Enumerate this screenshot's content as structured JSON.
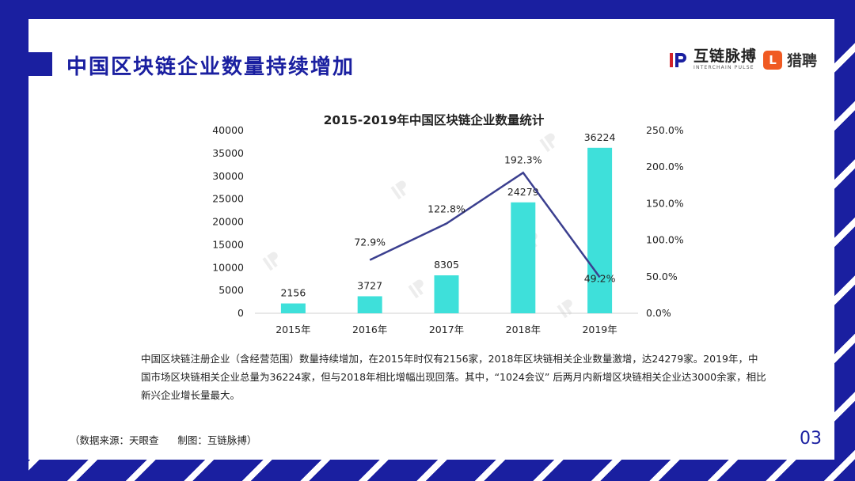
{
  "header": {
    "title": "中国区块链企业数量持续增加",
    "brand_ichain_name": "互链脉搏",
    "brand_ichain_sub": "INTERCHAIN PULSE",
    "brand_liepin_name": "猎聘",
    "brand_liepin_glyph": "L"
  },
  "colors": {
    "primary": "#1a1fa0",
    "bar": "#3ee0da",
    "line": "#3b3f8f"
  },
  "chart_data": {
    "type": "bar",
    "title": "2015-2019年中国区块链企业数量统计",
    "categories": [
      "2015年",
      "2016年",
      "2017年",
      "2018年",
      "2019年"
    ],
    "series": [
      {
        "type": "bar",
        "axis": "left",
        "values": [
          2156,
          3727,
          8305,
          24279,
          36224
        ],
        "labels": [
          "2156",
          "3727",
          "8305",
          "24279",
          "36224"
        ]
      },
      {
        "type": "line",
        "axis": "right",
        "values": [
          null,
          72.9,
          122.8,
          192.3,
          49.2
        ],
        "labels": [
          "",
          "72.9%",
          "122.8%",
          "192.3%",
          "49.2%"
        ]
      }
    ],
    "y_left": {
      "min": 0,
      "max": 40000,
      "ticks": [
        "0",
        "5000",
        "10000",
        "15000",
        "20000",
        "25000",
        "30000",
        "35000",
        "40000"
      ]
    },
    "y_right": {
      "min": 0,
      "max": 250,
      "ticks": [
        "0.0%",
        "50.0%",
        "100.0%",
        "150.0%",
        "200.0%",
        "250.0%"
      ]
    },
    "grid": false,
    "legend": "none"
  },
  "description": "中国区块链注册企业（含经营范围）数量持续增加，在2015年时仅有2156家，2018年区块链相关企业数量激增，达24279家。2019年，中国市场区块链相关企业总量为36224家，但与2018年相比增幅出现回落。其中，“1024会议” 后两月内新增区块链相关企业达3000余家，相比新兴企业增长量最大。",
  "footer": {
    "source": "（数据来源：天眼查      制图：互链脉搏）",
    "page_number": "03"
  }
}
